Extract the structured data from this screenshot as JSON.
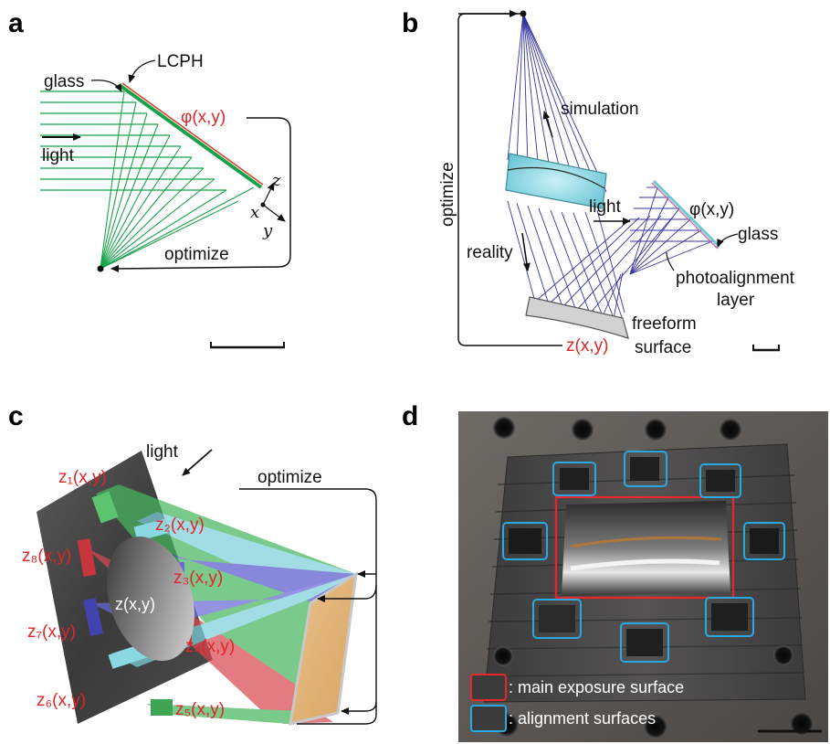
{
  "panels": {
    "a": {
      "letter": "a",
      "glass": "glass",
      "lcph": "LCPH",
      "phi": "φ(x,y)",
      "light": "light",
      "optimize": "optimize",
      "axis_z": "z",
      "axis_x": "x",
      "axis_y": "y"
    },
    "b": {
      "letter": "b",
      "optimize": "optimize",
      "simulation": "simulation",
      "light": "light",
      "phi": "φ(x,y)",
      "glass": "glass",
      "photo1": "photoalignment",
      "photo2": "layer",
      "reality": "reality",
      "freeform1": "freeform",
      "freeform2": "surface",
      "zxy": "z(x,y)"
    },
    "c": {
      "letter": "c",
      "light": "light",
      "optimize": "optimize",
      "z1": "z₁(x,y)",
      "z2": "z₂(x,y)",
      "z3": "z₃(x,y)",
      "z4": "z₄(x,y)",
      "z5": "z₅(x,y)",
      "z6": "z₆(x,y)",
      "z7": "z₇(x,y)",
      "z8": "z₈(x,y)",
      "z": "z(x,y)"
    },
    "d": {
      "letter": "d",
      "legend_main": ": main exposure surface",
      "legend_align": ": alignment surfaces"
    }
  },
  "colors": {
    "ray_green": "#19a24b",
    "ray_blue": "#3333a0",
    "label_red": "#e0262a",
    "main_box": "#e8262b",
    "align_box": "#27a9e1"
  }
}
